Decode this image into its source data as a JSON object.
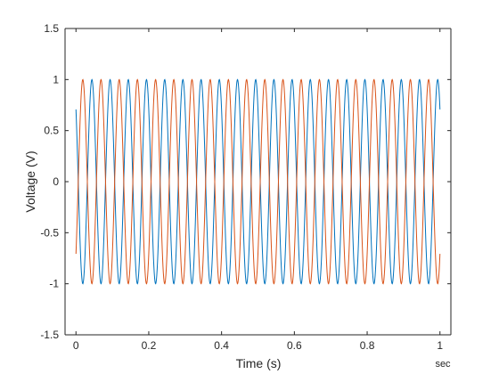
{
  "chart_data": {
    "type": "line",
    "xlabel": "Time (s)",
    "ylabel": "Voltage (V)",
    "x_unit_label": "sec",
    "xlim": [
      -0.03,
      1.03
    ],
    "ylim": [
      -1.5,
      1.5
    ],
    "x_ticks": [
      0,
      0.2,
      0.4,
      0.6,
      0.8,
      1
    ],
    "x_tick_labels": [
      "0",
      "0.2",
      "0.4",
      "0.6",
      "0.8",
      "1"
    ],
    "y_ticks": [
      -1.5,
      -1,
      -0.5,
      0,
      0.5,
      1,
      1.5
    ],
    "y_tick_labels": [
      "-1.5",
      "-1",
      "-0.5",
      "0",
      "0.5",
      "1",
      "1.5"
    ],
    "grid": false,
    "legend": "none",
    "series": [
      {
        "color": "#0072BD",
        "function": "sin",
        "amplitude": 1,
        "frequency_hz": 20,
        "phase_rad": 2.356,
        "x_range": [
          0,
          1
        ],
        "samples": 1001
      },
      {
        "color": "#D95319",
        "function": "sin",
        "amplitude": 1,
        "frequency_hz": 20,
        "phase_rad": -0.785,
        "x_range": [
          0,
          1
        ],
        "samples": 1001
      }
    ]
  }
}
